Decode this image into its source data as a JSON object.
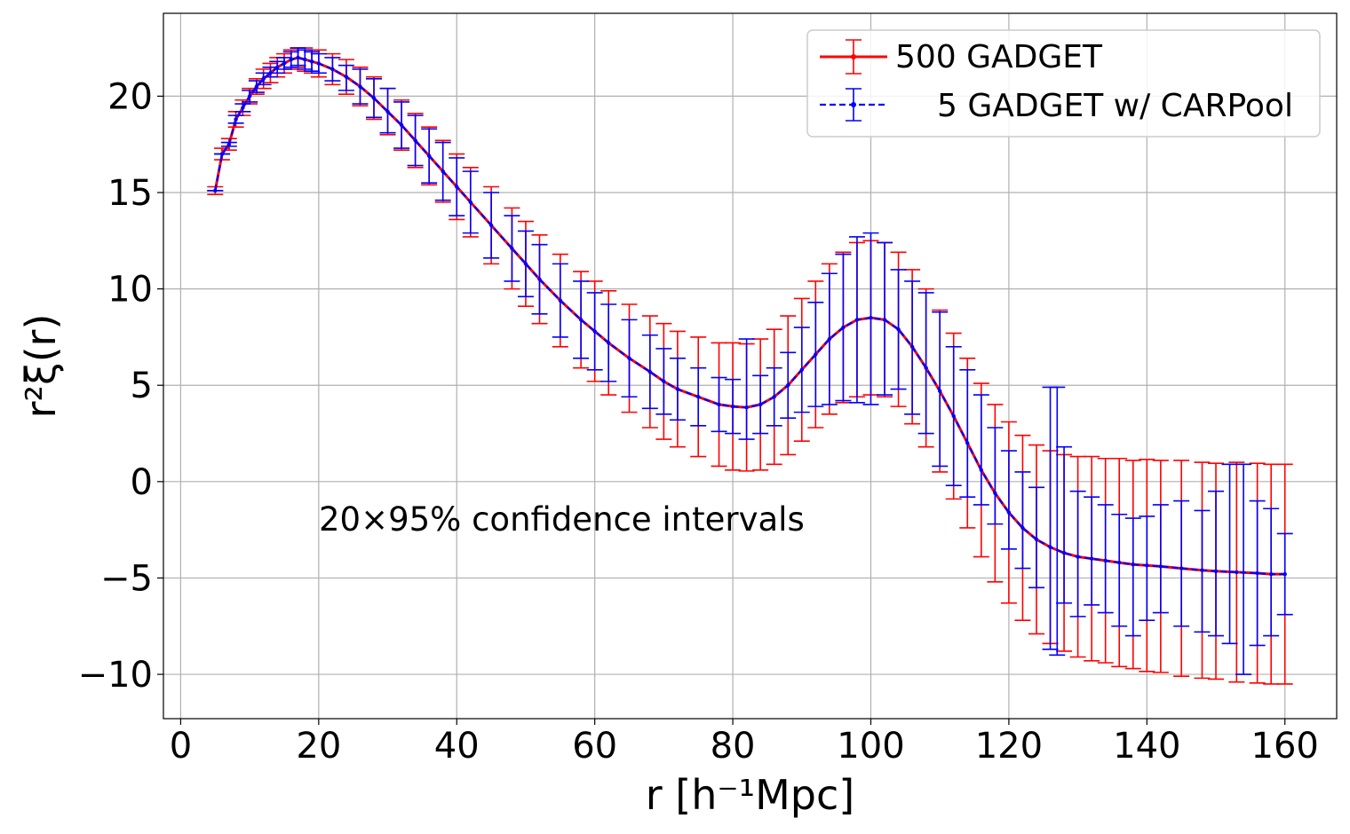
{
  "chart_data": {
    "type": "line",
    "title": "",
    "xlabel": "r [h⁻¹Mpc]",
    "ylabel": "r²ξ(r)",
    "xlim": [
      -2.5,
      167.5
    ],
    "ylim": [
      -12.3,
      24.3
    ],
    "xticks": [
      0,
      20,
      40,
      60,
      80,
      100,
      120,
      140,
      160
    ],
    "yticks": [
      -10,
      -5,
      0,
      5,
      10,
      15,
      20
    ],
    "xtick_labels": [
      "0",
      "20",
      "40",
      "60",
      "80",
      "100",
      "120",
      "140",
      "160"
    ],
    "ytick_labels": [
      "−10",
      "−5",
      "0",
      "5",
      "10",
      "15",
      "20"
    ],
    "grid": true,
    "legend_position": "top-right",
    "annotation": "20×95% confidence intervals",
    "colors": {
      "500 GADGET": "#ff0000",
      "5 GADGET w/ CARPool": "#0000ff"
    },
    "curve": {
      "x": [
        5,
        6,
        7,
        8,
        9,
        10,
        11,
        12,
        13,
        14,
        15,
        16,
        17,
        18,
        19,
        20,
        22,
        24,
        26,
        28,
        30,
        32,
        34,
        36,
        38,
        40,
        42,
        45,
        48,
        50,
        52,
        55,
        58,
        60,
        62,
        65,
        68,
        70,
        72,
        75,
        78,
        80,
        82,
        84,
        86,
        88,
        90,
        92,
        94,
        96,
        98,
        100,
        102,
        104,
        106,
        108,
        110,
        112,
        114,
        116,
        118,
        120,
        122,
        124,
        126,
        128,
        130,
        132,
        134,
        136,
        138,
        140,
        142,
        145,
        148,
        150,
        153,
        156,
        158,
        160
      ],
      "y": [
        15.1,
        17.0,
        17.5,
        18.8,
        19.4,
        20.0,
        20.5,
        20.9,
        21.2,
        21.5,
        21.7,
        21.9,
        22.0,
        21.9,
        21.8,
        21.7,
        21.4,
        21.0,
        20.5,
        19.9,
        19.2,
        18.5,
        17.7,
        16.9,
        16.1,
        15.3,
        14.5,
        13.3,
        12.1,
        11.3,
        10.5,
        9.4,
        8.4,
        7.8,
        7.2,
        6.4,
        5.7,
        5.2,
        4.8,
        4.4,
        4.0,
        3.9,
        3.85,
        4.0,
        4.4,
        5.0,
        5.8,
        6.6,
        7.4,
        8.0,
        8.4,
        8.5,
        8.4,
        7.9,
        7.0,
        5.9,
        4.7,
        3.4,
        2.0,
        0.6,
        -0.6,
        -1.6,
        -2.4,
        -3.0,
        -3.4,
        -3.7,
        -3.9,
        -4.0,
        -4.1,
        -4.2,
        -4.3,
        -4.35,
        -4.4,
        -4.5,
        -4.6,
        -4.65,
        -4.7,
        -4.75,
        -4.8,
        -4.8
      ]
    },
    "series": [
      {
        "name": "500 GADGET",
        "error_bars": {
          "x": [
            5,
            6,
            7,
            8,
            9,
            10,
            11,
            12,
            13,
            14,
            15,
            16,
            17,
            18,
            19,
            20,
            22,
            24,
            26,
            28,
            30,
            32,
            34,
            36,
            38,
            40,
            42,
            45,
            48,
            50,
            52,
            55,
            58,
            60,
            62,
            65,
            68,
            70,
            72,
            75,
            78,
            80,
            82,
            84,
            86,
            88,
            90,
            92,
            94,
            96,
            98,
            100,
            102,
            104,
            106,
            108,
            110,
            112,
            114,
            116,
            118,
            120,
            122,
            124,
            126,
            128,
            130,
            132,
            134,
            136,
            138,
            140,
            142,
            145,
            148,
            150,
            153,
            156,
            158,
            160
          ],
          "half_width": [
            0.2,
            0.3,
            0.3,
            0.4,
            0.4,
            0.4,
            0.4,
            0.5,
            0.5,
            0.5,
            0.5,
            0.5,
            0.5,
            0.6,
            0.6,
            0.7,
            0.8,
            0.9,
            1.0,
            1.1,
            1.2,
            1.3,
            1.4,
            1.5,
            1.6,
            1.7,
            1.8,
            2.0,
            2.1,
            2.2,
            2.3,
            2.4,
            2.5,
            2.6,
            2.7,
            2.8,
            2.9,
            3.0,
            3.0,
            3.1,
            3.2,
            3.3,
            3.3,
            3.4,
            3.5,
            3.6,
            3.7,
            3.8,
            3.9,
            3.9,
            4.0,
            4.0,
            4.0,
            4.0,
            4.0,
            4.1,
            4.2,
            4.3,
            4.4,
            4.5,
            4.6,
            4.7,
            4.8,
            4.9,
            5.0,
            5.1,
            5.2,
            5.3,
            5.3,
            5.4,
            5.4,
            5.5,
            5.5,
            5.6,
            5.6,
            5.6,
            5.7,
            5.7,
            5.7,
            5.7
          ]
        }
      },
      {
        "name": "5 GADGET w/ CARPool",
        "error_bars": {
          "x": [
            5,
            6,
            7,
            8,
            9,
            10,
            11,
            12,
            13,
            14,
            15,
            16,
            17,
            18,
            19,
            20,
            22,
            24,
            26,
            28,
            30,
            32,
            34,
            36,
            38,
            40,
            42,
            45,
            48,
            50,
            52,
            55,
            58,
            60,
            62,
            65,
            68,
            70,
            72,
            75,
            78,
            80,
            82,
            84,
            86,
            88,
            90,
            92,
            94,
            96,
            98,
            100,
            102,
            104,
            106,
            108,
            110,
            112,
            114,
            116,
            118,
            120,
            122,
            124,
            126,
            127,
            128,
            130,
            132,
            134,
            136,
            138,
            140,
            142,
            145,
            148,
            150,
            152,
            154,
            156,
            158,
            160
          ],
          "low": [
            15.1,
            17.0,
            17.4,
            18.6,
            19.2,
            19.7,
            20.2,
            20.6,
            21.0,
            21.2,
            21.4,
            21.5,
            21.6,
            21.4,
            21.3,
            21.2,
            20.8,
            20.3,
            19.6,
            18.9,
            18.1,
            17.3,
            16.4,
            15.5,
            14.6,
            13.8,
            12.9,
            11.6,
            10.4,
            9.6,
            8.7,
            7.5,
            6.4,
            5.8,
            5.2,
            4.4,
            3.8,
            3.5,
            3.2,
            2.9,
            2.6,
            2.5,
            2.2,
            2.5,
            2.9,
            3.3,
            3.6,
            3.9,
            4.0,
            4.2,
            4.1,
            4.0,
            4.5,
            4.8,
            3.5,
            2.5,
            0.8,
            -0.2,
            -0.8,
            -1.2,
            -2.2,
            -3.5,
            -4.5,
            -5.5,
            -8.7,
            -9.0,
            -6.3,
            -7.0,
            -6.4,
            -6.8,
            -7.5,
            -8.0,
            -7.2,
            -6.8,
            -7.5,
            -7.8,
            -8.0,
            -8.4,
            -10.0,
            -8.5,
            -8.0,
            -6.9
          ],
          "high": [
            15.1,
            17.0,
            17.6,
            19.0,
            19.6,
            20.3,
            20.8,
            21.2,
            21.5,
            21.8,
            22.0,
            22.3,
            22.5,
            22.4,
            22.3,
            22.2,
            22.0,
            21.6,
            21.4,
            20.9,
            20.4,
            19.7,
            19.0,
            18.3,
            17.6,
            16.8,
            16.1,
            15.0,
            13.8,
            13.0,
            12.3,
            11.3,
            10.4,
            9.8,
            9.2,
            8.4,
            7.6,
            6.9,
            6.4,
            5.9,
            5.4,
            5.3,
            7.4,
            5.5,
            5.9,
            6.7,
            8.0,
            9.3,
            10.8,
            11.8,
            12.7,
            12.9,
            12.4,
            11.0,
            10.4,
            9.8,
            8.8,
            7.0,
            5.8,
            4.5,
            2.8,
            1.6,
            0.5,
            -0.3,
            4.9,
            4.9,
            1.8,
            -0.5,
            -0.8,
            -1.2,
            -1.7,
            -1.9,
            -1.8,
            -1.2,
            -1.0,
            -1.5,
            -0.5,
            0.9,
            0.9,
            -1.0,
            -1.4,
            -2.7
          ]
        }
      }
    ]
  }
}
